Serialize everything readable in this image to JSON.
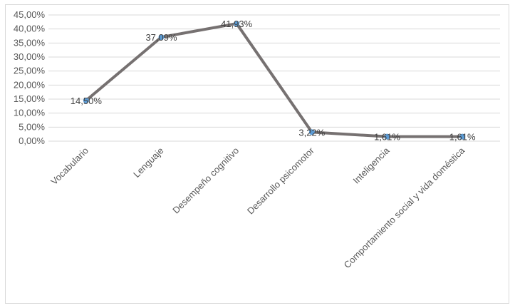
{
  "chart_data": {
    "type": "line",
    "title": "",
    "xlabel": "",
    "ylabel": "",
    "categories": [
      "Vocabulario",
      "Lenguaje",
      "Desempeño cognitivo",
      "Desarrollo psicomotor",
      "Inteligencia",
      "Comportamiento social y vida doméstica"
    ],
    "series": [
      {
        "values": [
          14.5,
          37.09,
          41.93,
          3.22,
          1.61,
          1.61
        ]
      }
    ],
    "data_labels": [
      "14,50%",
      "37,09%",
      "41,93%",
      "3,22%",
      "1,61%",
      "1,61%"
    ],
    "y_ticks": [
      "0,00%",
      "5,00%",
      "10,00%",
      "15,00%",
      "20,00%",
      "25,00%",
      "30,00%",
      "35,00%",
      "40,00%",
      "45,00%"
    ],
    "ylim": [
      0,
      45
    ],
    "grid": true,
    "legend": "none",
    "colors": {
      "line": "#767171",
      "marker": "#5b9bd5",
      "grid": "#d9d9d9"
    }
  }
}
